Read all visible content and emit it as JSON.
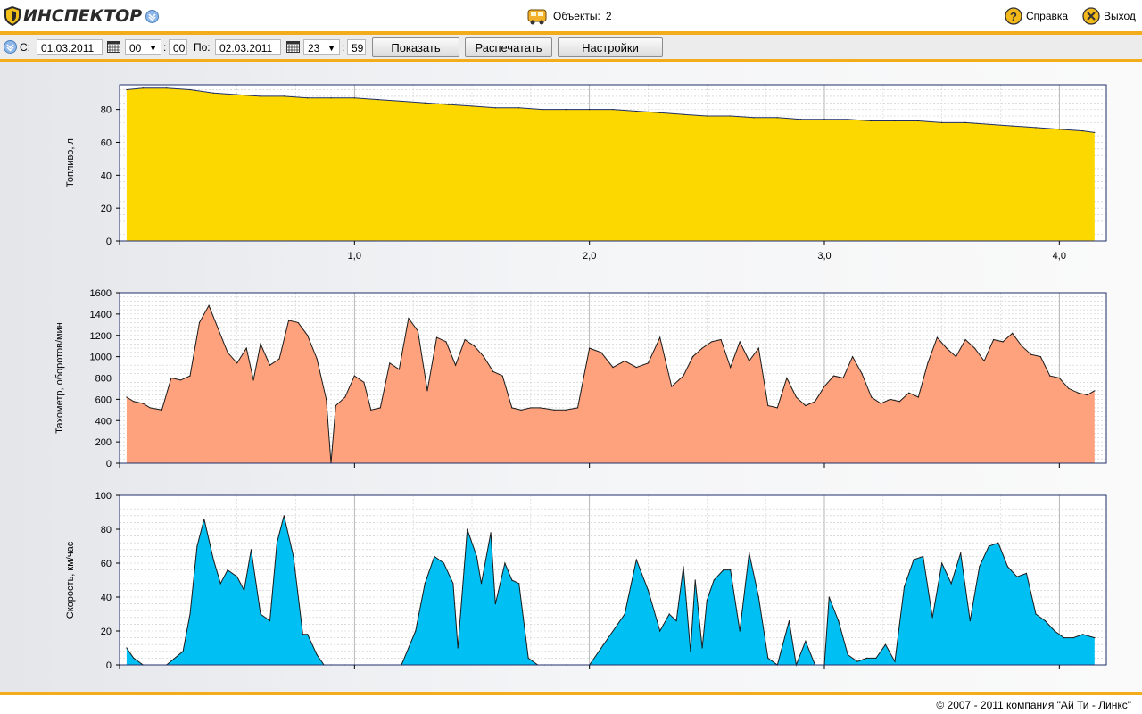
{
  "header": {
    "logo_text": "ИНСПЕКТОР",
    "objects_label": "Объекты:",
    "objects_count": "2",
    "help_label": "Справка",
    "exit_label": "Выход"
  },
  "toolbar": {
    "from_label": "С:",
    "from_date": "01.03.2011",
    "from_hour": "00",
    "from_minute": "00",
    "to_label": "По:",
    "to_date": "02.03.2011",
    "to_hour": "23",
    "to_minute": "59",
    "colon": ":",
    "show_button": "Показать",
    "print_button": "Распечатать",
    "settings_button": "Настройки"
  },
  "footer": {
    "copyright": "© 2007 - 2011 компания \"Ай Ти - Линкс\""
  },
  "colors": {
    "accent": "#f3ad1a",
    "fuel_fill": "#fdd700",
    "tacho_fill": "#fea27e",
    "speed_fill": "#00bff3",
    "axis": "#1f2f6b"
  },
  "chart_data": [
    {
      "type": "area",
      "ylabel": "Топливо, л",
      "ylim": [
        0,
        95
      ],
      "yticks": [
        0,
        20,
        40,
        60,
        80
      ],
      "xlim": [
        0,
        4.2
      ],
      "xticks": [
        1.0,
        2.0,
        3.0,
        4.0
      ],
      "xtick_labels": [
        "1,0",
        "2,0",
        "3,0",
        "4,0"
      ],
      "series": [
        {
          "x": [
            0.03,
            0.1,
            0.2,
            0.3,
            0.4,
            0.5,
            0.6,
            0.7,
            0.8,
            0.9,
            1.0,
            1.1,
            1.2,
            1.3,
            1.4,
            1.5,
            1.6,
            1.7,
            1.8,
            1.9,
            2.0,
            2.1,
            2.2,
            2.3,
            2.4,
            2.5,
            2.6,
            2.7,
            2.8,
            2.9,
            3.0,
            3.1,
            3.2,
            3.3,
            3.4,
            3.5,
            3.6,
            3.7,
            3.8,
            3.9,
            4.0,
            4.1,
            4.15
          ],
          "values": [
            92,
            93,
            93,
            92,
            90,
            89,
            88,
            88,
            87,
            87,
            87,
            86,
            85,
            84,
            83,
            82,
            81,
            81,
            80,
            80,
            80,
            80,
            79,
            78,
            77,
            76,
            76,
            75,
            75,
            74,
            74,
            74,
            73,
            73,
            73,
            72,
            72,
            71,
            70,
            69,
            68,
            67,
            66
          ]
        }
      ]
    },
    {
      "type": "area",
      "ylabel": "Тахометр, оборотов/мин",
      "ylim": [
        0,
        1600
      ],
      "yticks": [
        0,
        200,
        400,
        600,
        800,
        1000,
        1200,
        1400,
        1600
      ],
      "xlim": [
        0,
        4.2
      ],
      "xticks": [
        1.0,
        2.0,
        3.0,
        4.0
      ],
      "series": [
        {
          "x": [
            0.03,
            0.06,
            0.1,
            0.13,
            0.18,
            0.22,
            0.26,
            0.3,
            0.34,
            0.38,
            0.42,
            0.46,
            0.5,
            0.54,
            0.57,
            0.6,
            0.64,
            0.68,
            0.72,
            0.76,
            0.8,
            0.84,
            0.88,
            0.9,
            0.92,
            0.96,
            1.0,
            1.04,
            1.07,
            1.11,
            1.15,
            1.19,
            1.23,
            1.27,
            1.31,
            1.35,
            1.39,
            1.43,
            1.47,
            1.51,
            1.55,
            1.59,
            1.63,
            1.67,
            1.71,
            1.75,
            1.79,
            1.85,
            1.9,
            1.95,
            2.0,
            2.05,
            2.1,
            2.15,
            2.2,
            2.25,
            2.3,
            2.35,
            2.4,
            2.44,
            2.48,
            2.52,
            2.56,
            2.6,
            2.64,
            2.68,
            2.72,
            2.76,
            2.8,
            2.84,
            2.88,
            2.92,
            2.96,
            3.0,
            3.04,
            3.08,
            3.12,
            3.16,
            3.2,
            3.24,
            3.28,
            3.32,
            3.36,
            3.4,
            3.44,
            3.48,
            3.52,
            3.56,
            3.6,
            3.64,
            3.68,
            3.72,
            3.76,
            3.8,
            3.84,
            3.88,
            3.92,
            3.96,
            4.0,
            4.04,
            4.08,
            4.12,
            4.15
          ],
          "values": [
            620,
            580,
            560,
            520,
            500,
            800,
            780,
            820,
            1320,
            1480,
            1260,
            1040,
            940,
            1080,
            780,
            1120,
            920,
            980,
            1340,
            1320,
            1200,
            980,
            600,
            0,
            540,
            620,
            820,
            760,
            500,
            520,
            940,
            880,
            1360,
            1240,
            680,
            1180,
            1140,
            920,
            1160,
            1100,
            1000,
            860,
            820,
            520,
            500,
            520,
            520,
            500,
            500,
            520,
            1080,
            1040,
            900,
            960,
            900,
            940,
            1180,
            720,
            820,
            1000,
            1080,
            1140,
            1160,
            900,
            1140,
            960,
            1080,
            540,
            520,
            800,
            620,
            540,
            580,
            720,
            820,
            800,
            1000,
            840,
            620,
            560,
            600,
            580,
            660,
            620,
            940,
            1180,
            1080,
            1000,
            1160,
            1080,
            960,
            1160,
            1140,
            1220,
            1100,
            1020,
            1000,
            820,
            800,
            700,
            660,
            640,
            680
          ]
        }
      ]
    },
    {
      "type": "area",
      "ylabel": "Скорость, км/час",
      "ylim": [
        0,
        100
      ],
      "yticks": [
        0,
        20,
        40,
        60,
        80,
        100
      ],
      "xlim": [
        0,
        4.2
      ],
      "xticks": [
        1.0,
        2.0,
        3.0,
        4.0
      ],
      "series": [
        {
          "x": [
            0.03,
            0.06,
            0.1,
            0.2,
            0.27,
            0.3,
            0.33,
            0.36,
            0.4,
            0.43,
            0.46,
            0.5,
            0.53,
            0.56,
            0.6,
            0.64,
            0.67,
            0.7,
            0.74,
            0.78,
            0.8,
            0.84,
            0.87,
            0.9,
            0.96,
            1.2,
            1.26,
            1.3,
            1.34,
            1.38,
            1.42,
            1.44,
            1.48,
            1.52,
            1.54,
            1.58,
            1.6,
            1.64,
            1.67,
            1.7,
            1.74,
            1.78,
            1.81,
            1.84,
            1.9,
            2.0,
            2.15,
            2.2,
            2.25,
            2.3,
            2.34,
            2.37,
            2.4,
            2.43,
            2.45,
            2.48,
            2.5,
            2.53,
            2.57,
            2.6,
            2.64,
            2.68,
            2.72,
            2.76,
            2.8,
            2.85,
            2.88,
            2.92,
            2.96,
            3.0,
            3.02,
            3.06,
            3.1,
            3.14,
            3.18,
            3.22,
            3.26,
            3.3,
            3.34,
            3.38,
            3.42,
            3.46,
            3.5,
            3.54,
            3.58,
            3.62,
            3.66,
            3.7,
            3.74,
            3.78,
            3.82,
            3.86,
            3.9,
            3.94,
            3.98,
            4.02,
            4.06,
            4.1,
            4.15
          ],
          "values": [
            10,
            4,
            0,
            0,
            8,
            30,
            70,
            86,
            62,
            48,
            56,
            52,
            44,
            68,
            30,
            26,
            72,
            88,
            64,
            18,
            18,
            6,
            0,
            0,
            0,
            0,
            20,
            48,
            64,
            60,
            48,
            10,
            80,
            64,
            48,
            78,
            36,
            60,
            50,
            48,
            4,
            0,
            0,
            0,
            0,
            0,
            30,
            62,
            44,
            20,
            30,
            26,
            58,
            8,
            50,
            10,
            38,
            50,
            56,
            56,
            20,
            66,
            40,
            4,
            0,
            26,
            0,
            14,
            0,
            0,
            40,
            26,
            6,
            2,
            4,
            4,
            12,
            2,
            46,
            62,
            64,
            28,
            60,
            48,
            66,
            26,
            58,
            70,
            72,
            58,
            52,
            54,
            30,
            26,
            20,
            16,
            16,
            18,
            16
          ]
        }
      ]
    }
  ]
}
